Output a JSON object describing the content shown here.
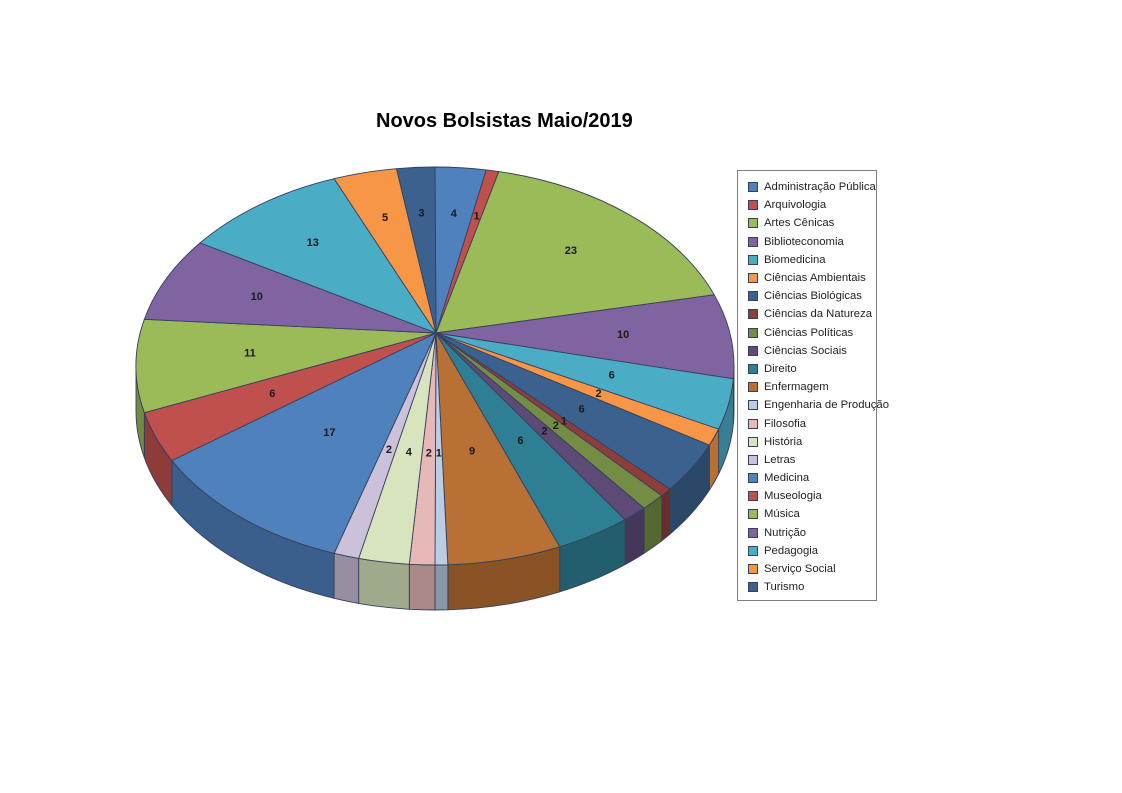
{
  "chart_data": {
    "type": "pie",
    "style": "3d",
    "title": "Novos Bolsistas Maio/2019",
    "legend_position": "right",
    "data_labels": "values",
    "start_angle_deg": 0,
    "direction": "clockwise",
    "series": [
      {
        "label": "Administração Pública",
        "value": 4,
        "color": "#4F81BD"
      },
      {
        "label": "Arquivologia",
        "value": 1,
        "color": "#C0504D"
      },
      {
        "label": "Artes Cênicas",
        "value": 23,
        "color": "#9BBB59"
      },
      {
        "label": "Biblioteconomia",
        "value": 10,
        "color": "#8064A2"
      },
      {
        "label": "Biomedicina",
        "value": 6,
        "color": "#4BACC6"
      },
      {
        "label": "Ciências Ambientais",
        "value": 2,
        "color": "#F79646"
      },
      {
        "label": "Ciências Biológicas",
        "value": 6,
        "color": "#3B618E"
      },
      {
        "label": "Ciências da Natureza",
        "value": 1,
        "color": "#903C3A"
      },
      {
        "label": "Ciências Políticas",
        "value": 2,
        "color": "#748C43"
      },
      {
        "label": "Ciências Sociais",
        "value": 2,
        "color": "#5D4A77"
      },
      {
        "label": "Direito",
        "value": 6,
        "color": "#2E7F93"
      },
      {
        "label": "Enfermagem",
        "value": 9,
        "color": "#B97034"
      },
      {
        "label": "Engenharia de Produção",
        "value": 1,
        "color": "#B9CDE4"
      },
      {
        "label": "Filosofia",
        "value": 2,
        "color": "#E6B9B8"
      },
      {
        "label": "História",
        "value": 4,
        "color": "#D7E4BD"
      },
      {
        "label": "Letras",
        "value": 2,
        "color": "#CCC1DA"
      },
      {
        "label": "Medicina",
        "value": 17,
        "color": "#4F81BD"
      },
      {
        "label": "Museologia",
        "value": 6,
        "color": "#C0504D"
      },
      {
        "label": "Música",
        "value": 11,
        "color": "#9BBB59"
      },
      {
        "label": "Nutrição",
        "value": 10,
        "color": "#8064A2"
      },
      {
        "label": "Pedagogia",
        "value": 13,
        "color": "#4BACC6"
      },
      {
        "label": "Serviço Social",
        "value": 5,
        "color": "#F79646"
      },
      {
        "label": "Turismo",
        "value": 3,
        "color": "#3B618E"
      }
    ]
  }
}
